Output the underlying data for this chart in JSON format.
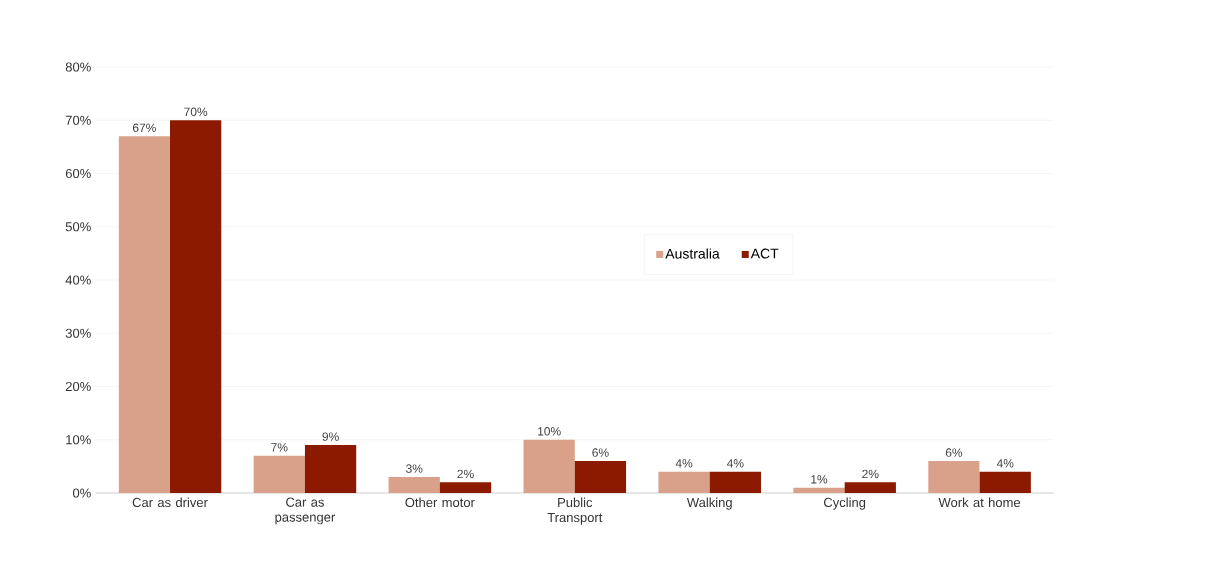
{
  "chart_data": {
    "type": "bar",
    "categories": [
      "Car as driver",
      "Car as passenger",
      "Other motor",
      "Public Transport",
      "Walking",
      "Cycling",
      "Work at home"
    ],
    "series": [
      {
        "name": "Australia",
        "color": "#d9a08a",
        "values": [
          67,
          7,
          3,
          10,
          4,
          1,
          6
        ],
        "value_labels": [
          "67%",
          "7%",
          "3%",
          "10%",
          "4%",
          "1%",
          "6%"
        ]
      },
      {
        "name": "ACT",
        "color": "#8b1a00",
        "values": [
          70,
          9,
          2,
          6,
          4,
          2,
          4
        ],
        "value_labels": [
          "70%",
          "9%",
          "2%",
          "6%",
          "4%",
          "2%",
          "4%"
        ]
      }
    ],
    "ylim": [
      0,
      80
    ],
    "yticks": [
      {
        "value": 0,
        "label": "0%"
      },
      {
        "value": 10,
        "label": "10%"
      },
      {
        "value": 20,
        "label": "20%"
      },
      {
        "value": 30,
        "label": "30%"
      },
      {
        "value": 40,
        "label": "40%"
      },
      {
        "value": 50,
        "label": "50%"
      },
      {
        "value": 60,
        "label": "60%"
      },
      {
        "value": 70,
        "label": "70%"
      },
      {
        "value": 80,
        "label": "80%"
      }
    ],
    "grid": "y",
    "legend": "center"
  }
}
